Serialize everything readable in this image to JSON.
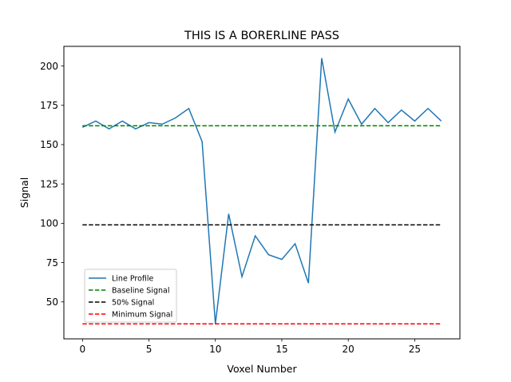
{
  "chart_data": {
    "type": "line",
    "title": "THIS IS A BORERLINE PASS",
    "xlabel": "Voxel Number",
    "ylabel": "Signal",
    "xlim": [
      -1.4,
      28.4
    ],
    "ylim": [
      26.5,
      212.5
    ],
    "xticks": [
      0,
      5,
      10,
      15,
      20,
      25
    ],
    "yticks": [
      50,
      75,
      100,
      125,
      150,
      175,
      200
    ],
    "grid": false,
    "legend_position": "lower-left",
    "series": [
      {
        "name": "Line Profile",
        "color": "#1f77b4",
        "style": "solid",
        "x": [
          0,
          1,
          2,
          3,
          4,
          5,
          6,
          7,
          8,
          9,
          10,
          11,
          12,
          13,
          14,
          15,
          16,
          17,
          18,
          19,
          20,
          21,
          22,
          23,
          24,
          25,
          26,
          27
        ],
        "values": [
          161,
          165,
          160,
          165,
          160,
          164,
          163,
          167,
          173,
          152,
          36,
          106,
          66,
          92,
          80,
          77,
          87,
          62,
          205,
          158,
          179,
          163,
          173,
          164,
          172,
          165,
          173,
          165
        ]
      },
      {
        "name": "Baseline Signal",
        "color": "#008000",
        "style": "dashed",
        "x": [
          0,
          27
        ],
        "values": [
          162,
          162
        ]
      },
      {
        "name": "50% Signal",
        "color": "#000000",
        "style": "dashed",
        "x": [
          0,
          27
        ],
        "values": [
          99,
          99
        ]
      },
      {
        "name": "Minimum Signal",
        "color": "#ff0000",
        "style": "dashed",
        "x": [
          0,
          27
        ],
        "values": [
          36,
          36
        ]
      }
    ]
  }
}
